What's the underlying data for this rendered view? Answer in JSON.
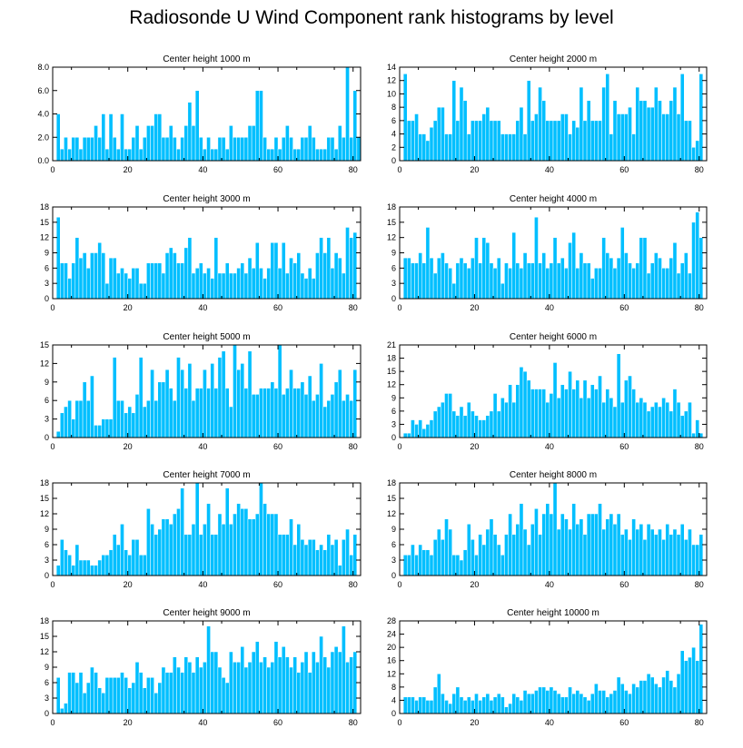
{
  "title": "Radiosonde U Wind Component rank histograms by level",
  "colors": {
    "bar": "#00BFFF",
    "axis": "#000000",
    "background": "#ffffff"
  },
  "chart_data": [
    {
      "type": "bar",
      "title": "Center height 1000 m",
      "xlim": [
        0,
        82
      ],
      "ylim": [
        0,
        8
      ],
      "yticks": [
        "0.0",
        "2.0",
        "4.0",
        "6.0",
        "8.0"
      ],
      "ytick_values": [
        0,
        2,
        4,
        6,
        8
      ],
      "xticks": [
        "0",
        "20",
        "40",
        "60",
        "80"
      ],
      "xtick_values": [
        0,
        20,
        40,
        60,
        80
      ],
      "values": [
        4,
        1,
        2,
        1,
        2,
        2,
        1,
        2,
        2,
        2,
        3,
        2,
        4,
        1,
        4,
        2,
        1,
        4,
        1,
        1,
        2,
        3,
        1,
        2,
        3,
        3,
        4,
        4,
        2,
        2,
        3,
        2,
        1,
        2,
        3,
        5,
        3,
        6,
        2,
        1,
        2,
        1,
        1,
        2,
        2,
        1,
        3,
        2,
        2,
        2,
        2,
        3,
        3,
        6,
        6,
        2,
        1,
        1,
        2,
        1,
        2,
        3,
        2,
        1,
        1,
        2,
        2,
        3,
        2,
        1,
        1,
        1,
        2,
        2,
        1,
        3,
        2,
        8,
        2,
        6,
        2
      ]
    },
    {
      "type": "bar",
      "title": "Center height 2000 m",
      "xlim": [
        0,
        82
      ],
      "ylim": [
        0,
        14
      ],
      "yticks": [
        "0",
        "2",
        "4",
        "6",
        "8",
        "10",
        "12",
        "14"
      ],
      "ytick_values": [
        0,
        2,
        4,
        6,
        8,
        10,
        12,
        14
      ],
      "xticks": [
        "0",
        "20",
        "40",
        "60",
        "80"
      ],
      "xtick_values": [
        0,
        20,
        40,
        60,
        80
      ],
      "values": [
        13,
        6,
        6,
        7,
        4,
        4,
        3,
        5,
        6,
        8,
        8,
        4,
        4,
        12,
        6,
        11,
        9,
        4,
        6,
        6,
        6,
        7,
        8,
        6,
        6,
        6,
        4,
        4,
        4,
        4,
        6,
        8,
        4,
        12,
        6,
        7,
        11,
        9,
        6,
        6,
        6,
        6,
        7,
        7,
        4,
        6,
        5,
        11,
        6,
        9,
        6,
        6,
        6,
        11,
        13,
        4,
        9,
        7,
        7,
        7,
        8,
        4,
        11,
        9,
        9,
        8,
        8,
        11,
        9,
        7,
        7,
        9,
        11,
        7,
        13,
        6,
        6,
        2,
        3,
        13
      ]
    },
    {
      "type": "bar",
      "title": "Center height 3000 m",
      "xlim": [
        0,
        82
      ],
      "ylim": [
        0,
        18
      ],
      "yticks": [
        "0",
        "3",
        "6",
        "9",
        "12",
        "15",
        "18"
      ],
      "ytick_values": [
        0,
        3,
        6,
        9,
        12,
        15,
        18
      ],
      "xticks": [
        "0",
        "20",
        "40",
        "60",
        "80"
      ],
      "xtick_values": [
        0,
        20,
        40,
        60,
        80
      ],
      "values": [
        16,
        7,
        7,
        4,
        7,
        12,
        8,
        9,
        6,
        9,
        9,
        11,
        9,
        3,
        8,
        8,
        5,
        6,
        5,
        4,
        6,
        6,
        3,
        3,
        7,
        7,
        7,
        7,
        5,
        9,
        10,
        9,
        7,
        7,
        10,
        12,
        5,
        6,
        7,
        5,
        6,
        4,
        12,
        5,
        5,
        7,
        5,
        5,
        6,
        7,
        5,
        8,
        6,
        11,
        6,
        4,
        6,
        11,
        11,
        6,
        11,
        5,
        8,
        7,
        9,
        5,
        4,
        6,
        4,
        9,
        12,
        9,
        12,
        6,
        9,
        8,
        5,
        14,
        12,
        13
      ]
    },
    {
      "type": "bar",
      "title": "Center height 4000 m",
      "xlim": [
        0,
        82
      ],
      "ylim": [
        0,
        18
      ],
      "yticks": [
        "0",
        "3",
        "6",
        "9",
        "12",
        "15",
        "18"
      ],
      "ytick_values": [
        0,
        3,
        6,
        9,
        12,
        15,
        18
      ],
      "xticks": [
        "0",
        "20",
        "40",
        "60",
        "80"
      ],
      "xtick_values": [
        0,
        20,
        40,
        60,
        80
      ],
      "values": [
        8,
        8,
        7,
        7,
        9,
        7,
        14,
        8,
        5,
        8,
        9,
        7,
        6,
        3,
        7,
        8,
        7,
        6,
        8,
        12,
        7,
        12,
        11,
        7,
        6,
        8,
        3,
        7,
        6,
        13,
        7,
        6,
        9,
        7,
        7,
        16,
        7,
        9,
        6,
        7,
        12,
        7,
        8,
        6,
        11,
        13,
        6,
        9,
        7,
        7,
        4,
        6,
        6,
        12,
        9,
        8,
        6,
        8,
        14,
        9,
        7,
        6,
        7,
        12,
        12,
        5,
        7,
        9,
        8,
        6,
        6,
        8,
        11,
        5,
        7,
        9,
        5,
        15,
        17,
        12
      ]
    },
    {
      "type": "bar",
      "title": "Center height 5000 m",
      "xlim": [
        0,
        82
      ],
      "ylim": [
        0,
        15
      ],
      "yticks": [
        "0",
        "3",
        "6",
        "9",
        "12",
        "15"
      ],
      "ytick_values": [
        0,
        3,
        6,
        9,
        12,
        15
      ],
      "xticks": [
        "0",
        "20",
        "40",
        "60",
        "80"
      ],
      "xtick_values": [
        0,
        20,
        40,
        60,
        80
      ],
      "values": [
        1,
        4,
        5,
        6,
        3,
        6,
        6,
        9,
        6,
        10,
        2,
        2,
        3,
        3,
        3,
        13,
        6,
        6,
        4,
        5,
        4,
        7,
        13,
        5,
        6,
        11,
        6,
        9,
        9,
        11,
        8,
        6,
        13,
        11,
        8,
        12,
        6,
        8,
        8,
        11,
        8,
        12,
        8,
        13,
        14,
        8,
        5,
        15,
        11,
        12,
        8,
        14,
        7,
        7,
        8,
        8,
        8,
        9,
        8,
        15,
        7,
        8,
        11,
        8,
        8,
        9,
        7,
        10,
        6,
        7,
        12,
        5,
        6,
        7,
        9,
        11,
        6,
        7,
        6,
        11
      ]
    },
    {
      "type": "bar",
      "title": "Center height 6000 m",
      "xlim": [
        0,
        82
      ],
      "ylim": [
        0,
        21
      ],
      "yticks": [
        "0",
        "3",
        "6",
        "9",
        "12",
        "15",
        "18",
        "21"
      ],
      "ytick_values": [
        0,
        3,
        6,
        9,
        12,
        15,
        18,
        21
      ],
      "xticks": [
        "0",
        "20",
        "40",
        "60",
        "80"
      ],
      "xtick_values": [
        0,
        20,
        40,
        60,
        80
      ],
      "values": [
        1,
        1,
        4,
        3,
        4,
        2,
        3,
        4,
        6,
        7,
        8,
        10,
        10,
        6,
        5,
        7,
        5,
        8,
        6,
        5,
        4,
        4,
        5,
        6,
        10,
        6,
        9,
        8,
        12,
        8,
        12,
        16,
        15,
        13,
        11,
        11,
        11,
        11,
        8,
        10,
        17,
        9,
        12,
        11,
        15,
        11,
        13,
        9,
        13,
        9,
        12,
        11,
        14,
        8,
        11,
        9,
        7,
        19,
        8,
        13,
        14,
        11,
        8,
        9,
        8,
        6,
        7,
        8,
        7,
        9,
        8,
        6,
        11,
        8,
        5,
        6,
        8,
        1,
        4,
        1
      ]
    },
    {
      "type": "bar",
      "title": "Center height 7000 m",
      "xlim": [
        0,
        82
      ],
      "ylim": [
        0,
        18
      ],
      "yticks": [
        "0",
        "3",
        "6",
        "9",
        "12",
        "15",
        "18"
      ],
      "ytick_values": [
        0,
        3,
        6,
        9,
        12,
        15,
        18
      ],
      "xticks": [
        "0",
        "20",
        "40",
        "60",
        "80"
      ],
      "xtick_values": [
        0,
        20,
        40,
        60,
        80
      ],
      "values": [
        2,
        7,
        5,
        4,
        2,
        6,
        3,
        3,
        3,
        2,
        2,
        3,
        4,
        4,
        5,
        8,
        6,
        10,
        5,
        4,
        7,
        7,
        4,
        4,
        13,
        10,
        8,
        9,
        11,
        11,
        10,
        12,
        13,
        17,
        8,
        8,
        10,
        18,
        8,
        10,
        14,
        8,
        8,
        12,
        10,
        17,
        10,
        12,
        14,
        13,
        13,
        11,
        11,
        12,
        18,
        14,
        12,
        12,
        12,
        8,
        8,
        8,
        11,
        6,
        10,
        7,
        6,
        7,
        7,
        5,
        6,
        5,
        8,
        6,
        7,
        2,
        7,
        9,
        4,
        8
      ]
    },
    {
      "type": "bar",
      "title": "Center height 8000 m",
      "xlim": [
        0,
        82
      ],
      "ylim": [
        0,
        18
      ],
      "yticks": [
        "0",
        "3",
        "6",
        "9",
        "12",
        "15",
        "18"
      ],
      "ytick_values": [
        0,
        3,
        6,
        9,
        12,
        15,
        18
      ],
      "xticks": [
        "0",
        "20",
        "40",
        "60",
        "80"
      ],
      "xtick_values": [
        0,
        20,
        40,
        60,
        80
      ],
      "values": [
        4,
        4,
        6,
        4,
        6,
        5,
        5,
        4,
        7,
        9,
        7,
        11,
        9,
        4,
        4,
        3,
        5,
        10,
        7,
        4,
        8,
        6,
        9,
        11,
        8,
        6,
        4,
        8,
        12,
        8,
        10,
        14,
        9,
        6,
        10,
        13,
        8,
        12,
        14,
        12,
        18,
        9,
        12,
        11,
        9,
        14,
        10,
        11,
        8,
        12,
        12,
        12,
        14,
        9,
        11,
        12,
        10,
        12,
        8,
        9,
        7,
        11,
        9,
        10,
        7,
        10,
        9,
        8,
        9,
        7,
        10,
        8,
        9,
        8,
        10,
        7,
        9,
        6,
        6,
        8
      ]
    },
    {
      "type": "bar",
      "title": "Center height 9000 m",
      "xlim": [
        0,
        82
      ],
      "ylim": [
        0,
        18
      ],
      "yticks": [
        "0",
        "3",
        "6",
        "9",
        "12",
        "15",
        "18"
      ],
      "ytick_values": [
        0,
        3,
        6,
        9,
        12,
        15,
        18
      ],
      "xticks": [
        "0",
        "20",
        "40",
        "60",
        "80"
      ],
      "xtick_values": [
        0,
        20,
        40,
        60,
        80
      ],
      "values": [
        7,
        1,
        2,
        8,
        8,
        6,
        8,
        4,
        6,
        9,
        8,
        5,
        4,
        7,
        7,
        7,
        7,
        8,
        7,
        5,
        6,
        10,
        8,
        5,
        7,
        7,
        4,
        6,
        9,
        8,
        8,
        11,
        9,
        8,
        11,
        10,
        8,
        11,
        9,
        10,
        17,
        12,
        12,
        9,
        7,
        6,
        12,
        10,
        10,
        13,
        9,
        10,
        12,
        14,
        10,
        11,
        9,
        10,
        14,
        11,
        13,
        11,
        9,
        11,
        8,
        10,
        12,
        8,
        12,
        10,
        15,
        11,
        9,
        12,
        13,
        12,
        17,
        10,
        11,
        12
      ]
    },
    {
      "type": "bar",
      "title": "Center height 10000 m",
      "xlim": [
        0,
        82
      ],
      "ylim": [
        0,
        28
      ],
      "yticks": [
        "0",
        "4",
        "8",
        "12",
        "16",
        "20",
        "24",
        "28"
      ],
      "ytick_values": [
        0,
        4,
        8,
        12,
        16,
        20,
        24,
        28
      ],
      "xticks": [
        "0",
        "20",
        "40",
        "60",
        "80"
      ],
      "xtick_values": [
        0,
        20,
        40,
        60,
        80
      ],
      "values": [
        5,
        5,
        5,
        4,
        5,
        5,
        4,
        4,
        8,
        12,
        6,
        4,
        3,
        6,
        8,
        5,
        4,
        5,
        4,
        6,
        4,
        5,
        6,
        4,
        5,
        6,
        5,
        2,
        3,
        6,
        5,
        4,
        7,
        6,
        6,
        7,
        8,
        8,
        7,
        8,
        7,
        6,
        5,
        5,
        8,
        6,
        7,
        6,
        5,
        4,
        6,
        9,
        7,
        7,
        5,
        6,
        7,
        11,
        9,
        7,
        6,
        9,
        8,
        10,
        10,
        12,
        11,
        9,
        8,
        11,
        13,
        10,
        8,
        12,
        19,
        16,
        17,
        20,
        16,
        27
      ]
    }
  ]
}
